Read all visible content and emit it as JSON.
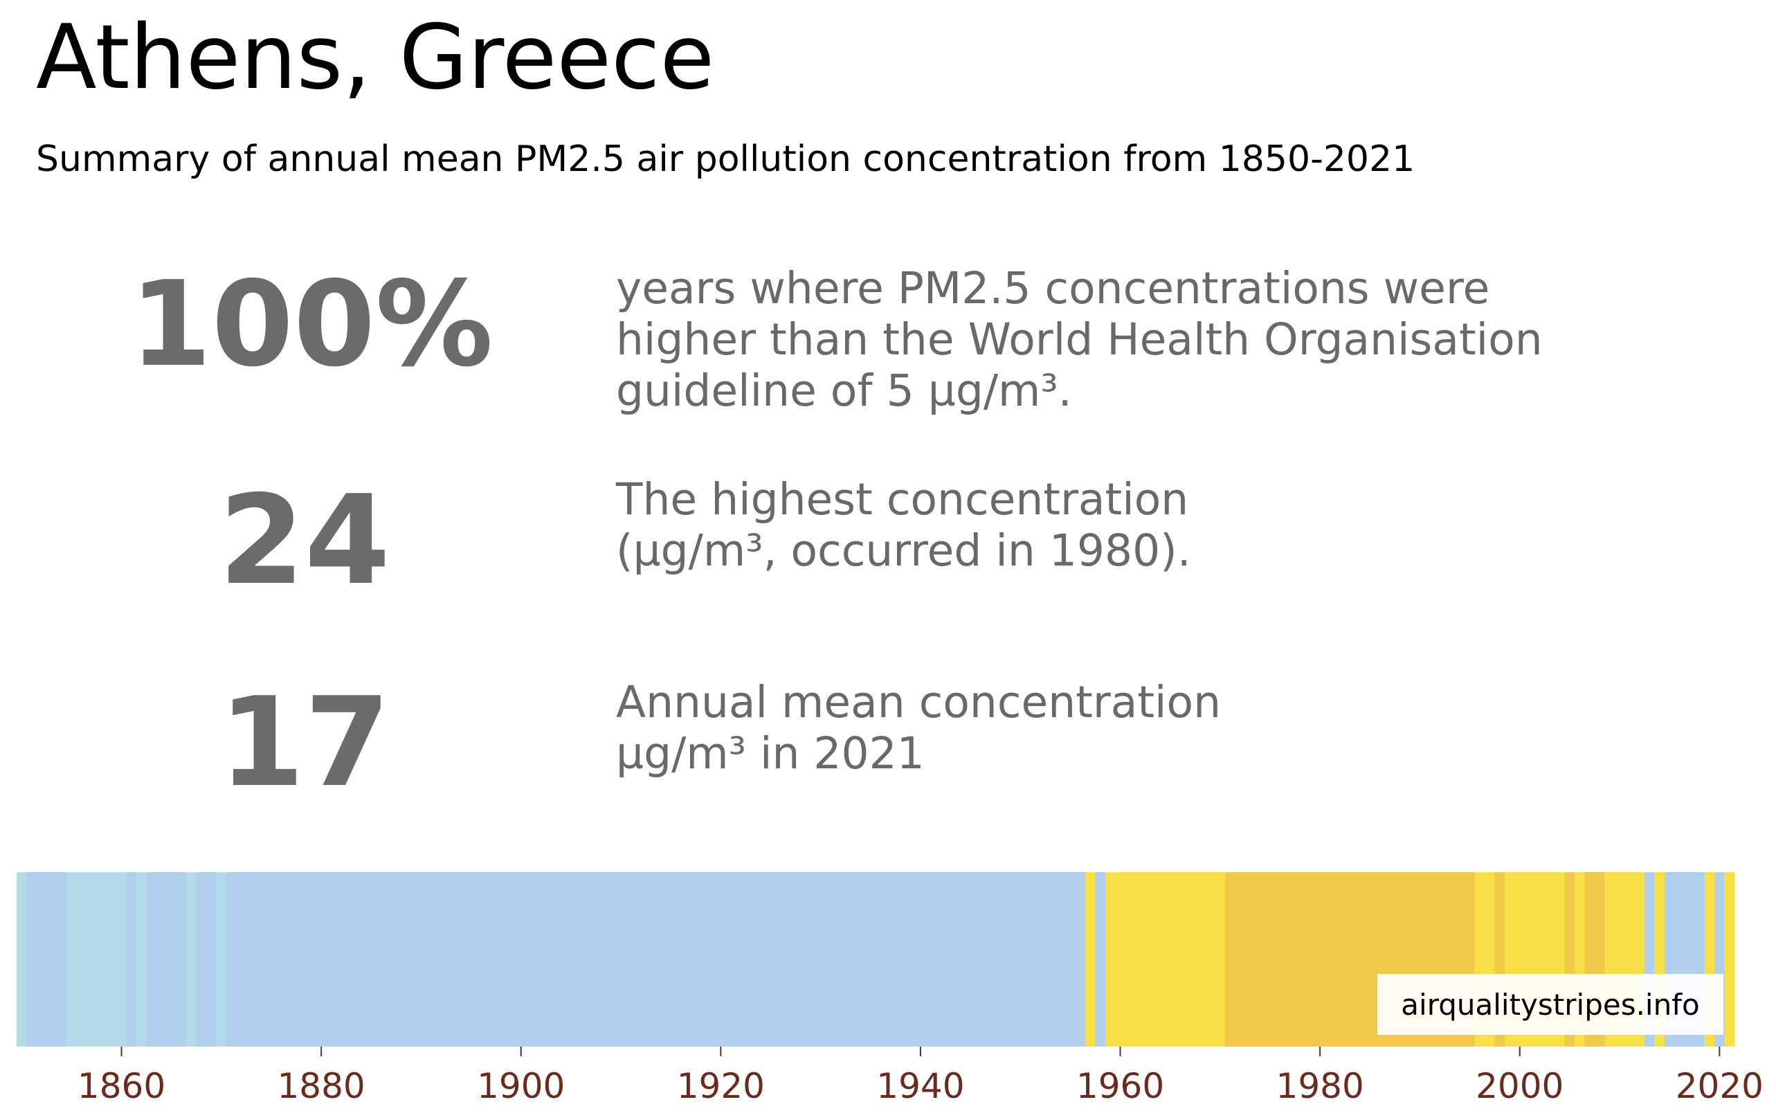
{
  "title": "Athens, Greece",
  "subtitle": "Summary of annual mean PM2.5 air pollution concentration from 1850-2021",
  "stats": [
    {
      "value": "100%",
      "lines": [
        "years where PM2.5 concentrations were",
        "higher than the World Health Organisation",
        "guideline of 5 µg/m³."
      ]
    },
    {
      "value": "24",
      "lines": [
        "The highest concentration",
        "(µg/m³, occurred in 1980)."
      ]
    },
    {
      "value": "17",
      "lines": [
        "Annual mean concentration",
        "µg/m³ in 2021"
      ]
    }
  ],
  "watermark": "airqualitystripes.info",
  "colors": {
    "tick_label": "#6b2a1e",
    "stat": "#6b6b6b"
  },
  "chart_data": {
    "type": "heatmap",
    "x_range": [
      1850,
      2021
    ],
    "ticks": [
      "1860",
      "1880",
      "1900",
      "1920",
      "1940",
      "1960",
      "1980",
      "2000",
      "2020"
    ],
    "tick_values": [
      1860,
      1880,
      1900,
      1920,
      1940,
      1960,
      1980,
      2000,
      2020
    ],
    "stripes": [
      {
        "start": 1850,
        "end": 1850,
        "color": "#b3dae9"
      },
      {
        "start": 1851,
        "end": 1854,
        "color": "#b0cfee"
      },
      {
        "start": 1855,
        "end": 1860,
        "color": "#b3dae9"
      },
      {
        "start": 1861,
        "end": 1861,
        "color": "#b0cfee"
      },
      {
        "start": 1862,
        "end": 1862,
        "color": "#b3dae9"
      },
      {
        "start": 1863,
        "end": 1866,
        "color": "#b0cfee"
      },
      {
        "start": 1867,
        "end": 1867,
        "color": "#b3dae9"
      },
      {
        "start": 1868,
        "end": 1869,
        "color": "#b0cfee"
      },
      {
        "start": 1870,
        "end": 1870,
        "color": "#b3dae9"
      },
      {
        "start": 1871,
        "end": 1956,
        "color": "#b0cfee"
      },
      {
        "start": 1957,
        "end": 1957,
        "color": "#f7e046"
      },
      {
        "start": 1958,
        "end": 1958,
        "color": "#b0cfee"
      },
      {
        "start": 1959,
        "end": 1970,
        "color": "#f7e046"
      },
      {
        "start": 1971,
        "end": 1995,
        "color": "#f2c84b"
      },
      {
        "start": 1996,
        "end": 1997,
        "color": "#f7e046"
      },
      {
        "start": 1998,
        "end": 1998,
        "color": "#f2c84b"
      },
      {
        "start": 1999,
        "end": 2004,
        "color": "#f7e046"
      },
      {
        "start": 2005,
        "end": 2005,
        "color": "#f2c84b"
      },
      {
        "start": 2006,
        "end": 2006,
        "color": "#f7e046"
      },
      {
        "start": 2007,
        "end": 2008,
        "color": "#f2c84b"
      },
      {
        "start": 2009,
        "end": 2012,
        "color": "#f7e046"
      },
      {
        "start": 2013,
        "end": 2013,
        "color": "#b0cfee"
      },
      {
        "start": 2014,
        "end": 2014,
        "color": "#f7e046"
      },
      {
        "start": 2015,
        "end": 2018,
        "color": "#b0cfee"
      },
      {
        "start": 2019,
        "end": 2019,
        "color": "#f7e046"
      },
      {
        "start": 2020,
        "end": 2020,
        "color": "#b0cfee"
      },
      {
        "start": 2021,
        "end": 2021,
        "color": "#f7e046"
      }
    ]
  }
}
